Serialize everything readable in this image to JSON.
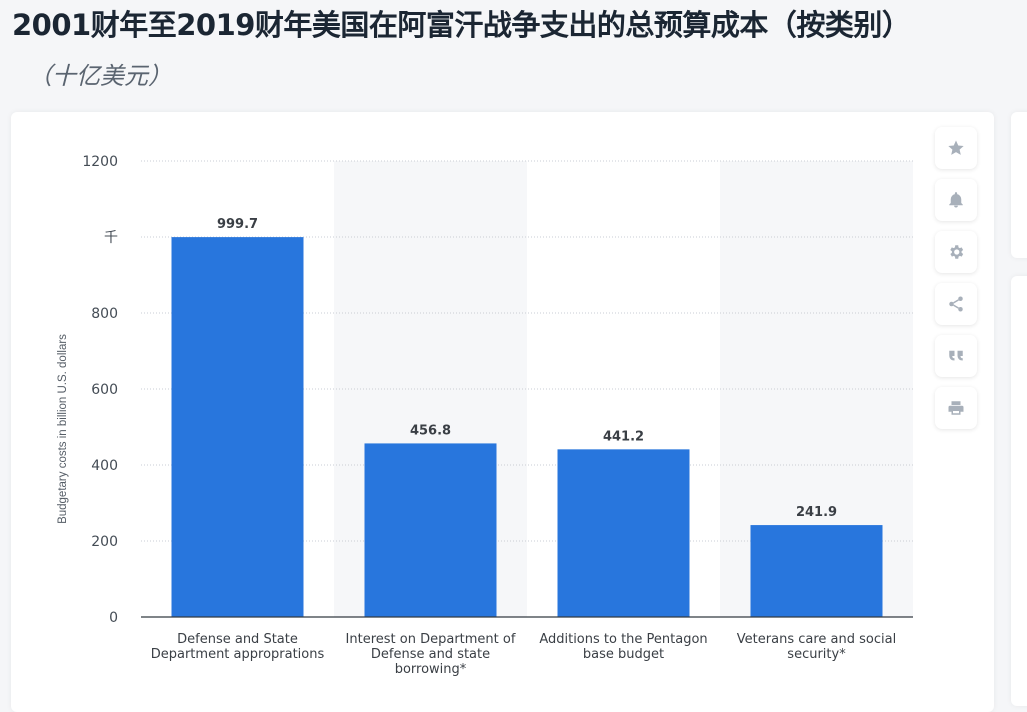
{
  "page": {
    "title": "2001财年至2019财年美国在阿富汗战争支出的总预算成本（按类别）",
    "subtitle": "（十亿美元）"
  },
  "toolbar": {
    "buttons": [
      {
        "name": "favorite-button",
        "icon": "star-icon"
      },
      {
        "name": "notification-button",
        "icon": "bell-icon"
      },
      {
        "name": "settings-button",
        "icon": "gear-icon"
      },
      {
        "name": "share-button",
        "icon": "share-icon"
      },
      {
        "name": "cite-button",
        "icon": "quote-icon"
      },
      {
        "name": "print-button",
        "icon": "printer-icon"
      }
    ]
  },
  "chart_data": {
    "type": "bar",
    "categories": [
      [
        "Defense and State",
        "Department approprations"
      ],
      [
        "Interest on Department of",
        "Defense and state",
        "borrowing*"
      ],
      [
        "Additions to the Pentagon",
        "base budget"
      ],
      [
        "Veterans care and social",
        "security*"
      ]
    ],
    "values": [
      999.7,
      456.8,
      441.2,
      241.9
    ],
    "value_labels": [
      "999.7",
      "456.8",
      "441.2",
      "241.9"
    ],
    "ylabel": "Budgetary costs in billion U.S. dollars",
    "yticks": [
      0,
      200,
      400,
      600,
      800,
      1000,
      1200
    ],
    "ytick_labels": [
      "0",
      "200",
      "400",
      "600",
      "800",
      "千",
      "1200"
    ],
    "ylim": [
      0,
      1200
    ],
    "grid": true,
    "alternating_band_fill": true,
    "bar_color": "#2876dd"
  }
}
